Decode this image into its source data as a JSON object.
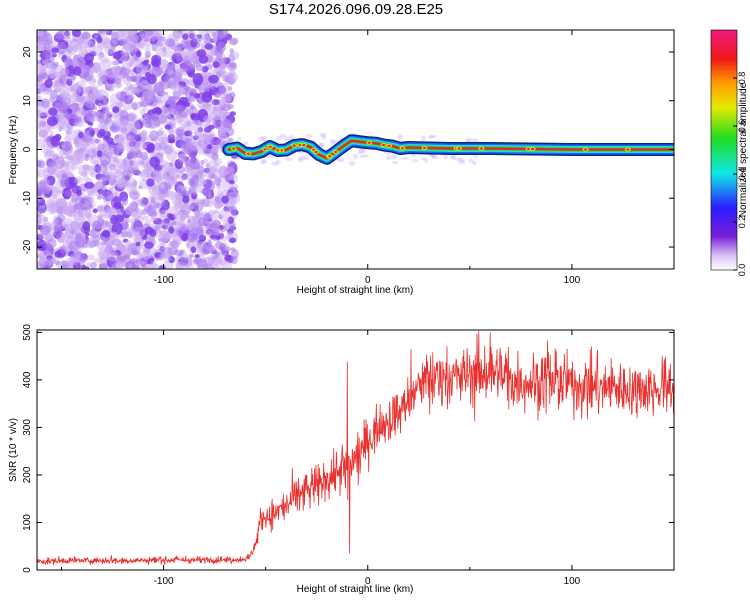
{
  "title": "S174.2026.096.09.28.E25",
  "chart_data": [
    {
      "type": "heatmap",
      "name": "spectrogram",
      "xlabel": "Height of straight line (km)",
      "ylabel": "Frequency (Hz)",
      "xlim": [
        -162,
        150
      ],
      "ylim": [
        -24.5,
        24.5
      ],
      "xticks": [
        -100,
        0,
        100
      ],
      "xtick_labels": [
        "-100",
        "0",
        "100"
      ],
      "yticks": [
        -20,
        -10,
        0,
        10,
        20
      ],
      "ytick_labels": [
        "-20",
        "-10",
        "0",
        "10",
        "20"
      ],
      "noise_region_x": [
        -162,
        -67
      ],
      "ridge_track": {
        "x": [
          -68,
          -64,
          -60,
          -56,
          -52,
          -48,
          -44,
          -40,
          -36,
          -32,
          -28,
          -24,
          -20,
          -16,
          -12,
          -8,
          -4,
          0,
          4,
          8,
          12,
          16,
          20,
          30,
          40,
          50,
          60,
          80,
          100,
          120,
          140,
          150
        ],
        "freq": [
          0.0,
          0.3,
          -0.8,
          -0.9,
          -0.4,
          0.6,
          -0.2,
          -0.1,
          0.8,
          1.0,
          0.5,
          -1.0,
          -1.8,
          -0.6,
          0.7,
          1.8,
          1.6,
          1.4,
          1.3,
          0.9,
          0.7,
          0.2,
          0.4,
          0.3,
          0.2,
          0.2,
          0.2,
          0.1,
          0.0,
          0.0,
          0.0,
          0.0
        ]
      },
      "colorbar": {
        "label": "Normalized spectral amplitude",
        "range": [
          0.0,
          1.0
        ],
        "ticks": [
          0.0,
          0.2,
          0.4,
          0.6,
          0.8
        ],
        "tick_labels": [
          "0.0",
          "0.2",
          "0.4",
          "0.6",
          "0.8"
        ]
      }
    },
    {
      "type": "line",
      "name": "snr",
      "xlabel": "Height of straight line (km)",
      "ylabel": "SNR (10 * v/v)",
      "xlim": [
        -162,
        150
      ],
      "ylim": [
        0,
        505
      ],
      "xticks": [
        -100,
        0,
        100
      ],
      "xtick_labels": [
        "-100",
        "0",
        "100"
      ],
      "yticks": [
        0,
        100,
        200,
        300,
        400,
        500
      ],
      "ytick_labels": [
        "0",
        "100",
        "200",
        "300",
        "400",
        "500"
      ],
      "series": [
        {
          "name": "SNR",
          "color": "#e8312e",
          "x": [
            -162,
            -140,
            -120,
            -100,
            -80,
            -65,
            -58,
            -55,
            -52,
            -45,
            -40,
            -35,
            -30,
            -25,
            -20,
            -15,
            -10,
            -5,
            0,
            5,
            10,
            15,
            20,
            25,
            30,
            40,
            50,
            60,
            70,
            80,
            90,
            100,
            110,
            120,
            130,
            140,
            150
          ],
          "values": [
            18,
            20,
            20,
            21,
            21,
            22,
            25,
            55,
            110,
            120,
            135,
            155,
            165,
            175,
            190,
            205,
            215,
            240,
            270,
            300,
            315,
            330,
            355,
            385,
            400,
            405,
            410,
            420,
            400,
            395,
            395,
            390,
            385,
            385,
            380,
            380,
            390
          ]
        }
      ],
      "spikes": [
        {
          "x": -10,
          "value": 438
        },
        {
          "x": -9,
          "value": 35
        },
        {
          "x": 60,
          "value": 500
        },
        {
          "x": 88,
          "value": 483
        }
      ]
    }
  ],
  "colors": {
    "line": "#e8312e",
    "noise_purple": "#7f3fe8",
    "noise_light": "#c9a8f2",
    "ridge_outer": "#0a2a78",
    "ridge_blue": "#1f63ff",
    "ridge_cyan": "#11e0e6",
    "ridge_green": "#33dd22",
    "ridge_red": "#e5243f"
  }
}
